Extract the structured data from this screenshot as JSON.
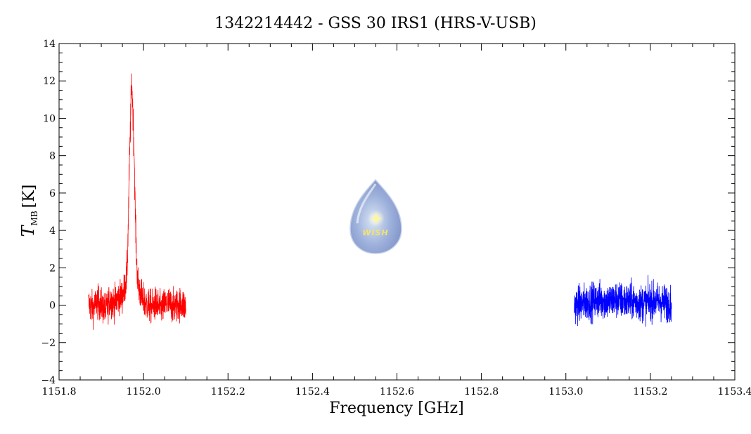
{
  "chart_data": {
    "type": "line",
    "title": "1342214442 - GSS 30 IRS1 (HRS-V-USB)",
    "xlabel": "Frequency [GHz]",
    "ylabel_main": "T",
    "ylabel_sub": "MB",
    "ylabel_unit": "[K]",
    "xlim": [
      1151.8,
      1153.4
    ],
    "ylim": [
      -4,
      14
    ],
    "x_ticks": [
      {
        "value": 1151.8,
        "label": "1151.8"
      },
      {
        "value": 1152.0,
        "label": "1152.0"
      },
      {
        "value": 1152.2,
        "label": "1152.2"
      },
      {
        "value": 1152.4,
        "label": "1152.4"
      },
      {
        "value": 1152.6,
        "label": "1152.6"
      },
      {
        "value": 1152.8,
        "label": "1152.8"
      },
      {
        "value": 1153.0,
        "label": "1153.0"
      },
      {
        "value": 1153.2,
        "label": "1153.2"
      },
      {
        "value": 1153.4,
        "label": "1153.4"
      }
    ],
    "y_ticks": [
      {
        "value": -4,
        "label": "−4"
      },
      {
        "value": -2,
        "label": "−2"
      },
      {
        "value": 0,
        "label": "0"
      },
      {
        "value": 2,
        "label": "2"
      },
      {
        "value": 4,
        "label": "4"
      },
      {
        "value": 6,
        "label": "6"
      },
      {
        "value": 8,
        "label": "8"
      },
      {
        "value": 10,
        "label": "10"
      },
      {
        "value": 12,
        "label": "12"
      },
      {
        "value": 14,
        "label": "14"
      }
    ],
    "grid": false,
    "series": [
      {
        "color": "#ff0000",
        "x": [
          1151.87,
          1151.88,
          1151.89,
          1151.9,
          1151.91,
          1151.92,
          1151.93,
          1151.94,
          1151.95,
          1151.955,
          1151.96,
          1151.962,
          1151.964,
          1151.966,
          1151.968,
          1151.97,
          1151.972,
          1151.974,
          1151.976,
          1151.978,
          1151.98,
          1151.982,
          1151.984,
          1151.986,
          1151.99,
          1151.995,
          1152.0,
          1152.01,
          1152.02,
          1152.03,
          1152.04,
          1152.05,
          1152.06,
          1152.07,
          1152.08,
          1152.09,
          1152.1
        ],
        "y": [
          0.1,
          -0.2,
          0.2,
          0.0,
          -0.3,
          0.3,
          0.1,
          0.4,
          0.5,
          0.9,
          1.5,
          2.5,
          4.5,
          7.0,
          8.8,
          10.5,
          12.1,
          10.8,
          9.5,
          8.0,
          5.5,
          3.5,
          2.2,
          1.4,
          0.8,
          0.5,
          0.2,
          0.0,
          -0.1,
          0.1,
          -0.2,
          0.0,
          0.1,
          -0.1,
          0.0,
          0.1,
          -0.1
        ],
        "noise_rms": 0.45
      },
      {
        "color": "#0000ff",
        "x": [
          1153.02,
          1153.04,
          1153.06,
          1153.08,
          1153.1,
          1153.12,
          1153.14,
          1153.16,
          1153.18,
          1153.2,
          1153.22,
          1153.24,
          1153.25
        ],
        "y": [
          0.0,
          0.1,
          0.2,
          0.3,
          0.2,
          0.3,
          0.2,
          0.2,
          0.1,
          0.2,
          0.2,
          0.1,
          0.1
        ],
        "noise_rms": 0.5
      }
    ],
    "logo_text": "WISH"
  }
}
